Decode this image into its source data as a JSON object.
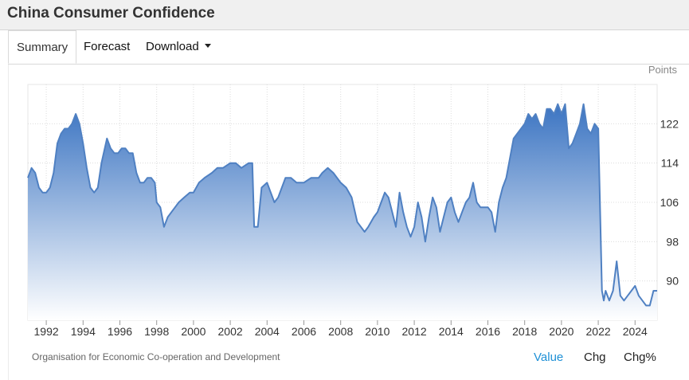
{
  "header": {
    "title": "China Consumer Confidence"
  },
  "tabs": [
    {
      "label": "Summary",
      "active": true
    },
    {
      "label": "Forecast",
      "active": false
    },
    {
      "label": "Download",
      "active": false,
      "has_dropdown": true
    }
  ],
  "footer": {
    "source": "Organisation for Economic Co-operation and Development",
    "buttons": [
      {
        "label": "Value",
        "active": true
      },
      {
        "label": "Chg",
        "active": false
      },
      {
        "label": "Chg%",
        "active": false
      }
    ]
  },
  "colors": {
    "line": "#4f80c2",
    "fill_top": "#3b74c2",
    "fill_bottom": "#ffffff",
    "active_button": "#1e90d6"
  },
  "chart_data": {
    "type": "area",
    "title": "",
    "unit_label": "Points",
    "xlabel": "",
    "ylabel": "",
    "x_ticks": [
      "1992",
      "1994",
      "1996",
      "1998",
      "2000",
      "2002",
      "2004",
      "2006",
      "2008",
      "2010",
      "2012",
      "2014",
      "2016",
      "2018",
      "2020",
      "2022",
      "2024"
    ],
    "y_ticks": [
      90,
      98,
      106,
      114,
      122
    ],
    "xlim": [
      1991.0,
      2025.2
    ],
    "ylim": [
      82,
      130
    ],
    "y_axis_position": "right",
    "grid": true,
    "series": [
      {
        "x": [
          1991.0,
          1991.2,
          1991.4,
          1991.6,
          1991.8,
          1992.0,
          1992.2,
          1992.4,
          1992.6,
          1992.8,
          1993.0,
          1993.2,
          1993.4,
          1993.6,
          1993.8,
          1994.0,
          1994.2,
          1994.4,
          1994.6,
          1994.8,
          1995.0,
          1995.3,
          1995.5,
          1995.7,
          1995.9,
          1996.1,
          1996.3,
          1996.5,
          1996.7,
          1996.9,
          1997.1,
          1997.3,
          1997.5,
          1997.7,
          1997.9,
          1998.0,
          1998.2,
          1998.4,
          1998.6,
          1998.8,
          1999.0,
          1999.2,
          1999.5,
          1999.8,
          2000.0,
          2000.3,
          2000.6,
          2001.0,
          2001.3,
          2001.6,
          2002.0,
          2002.3,
          2002.6,
          2003.0,
          2003.2,
          2003.3,
          2003.5,
          2003.7,
          2004.0,
          2004.2,
          2004.4,
          2004.6,
          2005.0,
          2005.3,
          2005.6,
          2006.0,
          2006.4,
          2006.8,
          2007.0,
          2007.3,
          2007.6,
          2008.0,
          2008.3,
          2008.6,
          2008.9,
          2009.1,
          2009.3,
          2009.5,
          2009.8,
          2010.0,
          2010.2,
          2010.4,
          2010.6,
          2010.8,
          2011.0,
          2011.2,
          2011.4,
          2011.6,
          2011.8,
          2012.0,
          2012.2,
          2012.4,
          2012.6,
          2012.8,
          2013.0,
          2013.2,
          2013.4,
          2013.6,
          2013.8,
          2014.0,
          2014.2,
          2014.4,
          2014.6,
          2014.8,
          2015.0,
          2015.2,
          2015.4,
          2015.6,
          2015.8,
          2016.0,
          2016.2,
          2016.4,
          2016.6,
          2016.8,
          2017.0,
          2017.2,
          2017.4,
          2017.6,
          2017.8,
          2018.0,
          2018.2,
          2018.4,
          2018.6,
          2018.8,
          2019.0,
          2019.2,
          2019.4,
          2019.6,
          2019.8,
          2020.0,
          2020.2,
          2020.4,
          2020.6,
          2020.8,
          2021.0,
          2021.2,
          2021.4,
          2021.6,
          2021.8,
          2022.0,
          2022.2,
          2022.3,
          2022.4,
          2022.6,
          2022.8,
          2023.0,
          2023.2,
          2023.4,
          2023.6,
          2023.8,
          2024.0,
          2024.2,
          2024.4,
          2024.6,
          2024.8,
          2025.0,
          2025.2
        ],
        "values": [
          111,
          113,
          112,
          109,
          108,
          108,
          109,
          112,
          118,
          120,
          121,
          121,
          122,
          124,
          122,
          118,
          113,
          109,
          108,
          109,
          114,
          119,
          117,
          116,
          116,
          117,
          117,
          116,
          116,
          112,
          110,
          110,
          111,
          111,
          110,
          106,
          105,
          101,
          103,
          104,
          105,
          106,
          107,
          108,
          108,
          110,
          111,
          112,
          113,
          113,
          114,
          114,
          113,
          114,
          114,
          101,
          101,
          109,
          110,
          108,
          106,
          107,
          111,
          111,
          110,
          110,
          111,
          111,
          112,
          113,
          112,
          110,
          109,
          107,
          102,
          101,
          100,
          101,
          103,
          104,
          106,
          108,
          107,
          104,
          101,
          108,
          104,
          101,
          99,
          101,
          106,
          103,
          98,
          103,
          107,
          105,
          100,
          103,
          106,
          107,
          104,
          102,
          104,
          106,
          107,
          110,
          106,
          105,
          105,
          105,
          104,
          100,
          106,
          109,
          111,
          115,
          119,
          120,
          121,
          122,
          124,
          123,
          124,
          122,
          121,
          125,
          125,
          124,
          126,
          124,
          126,
          117,
          118,
          120,
          122,
          126,
          121,
          120,
          122,
          121,
          88,
          86,
          88,
          86,
          88,
          94,
          87,
          86,
          87,
          88,
          89,
          87,
          86,
          85,
          85,
          88,
          88
        ]
      }
    ]
  }
}
